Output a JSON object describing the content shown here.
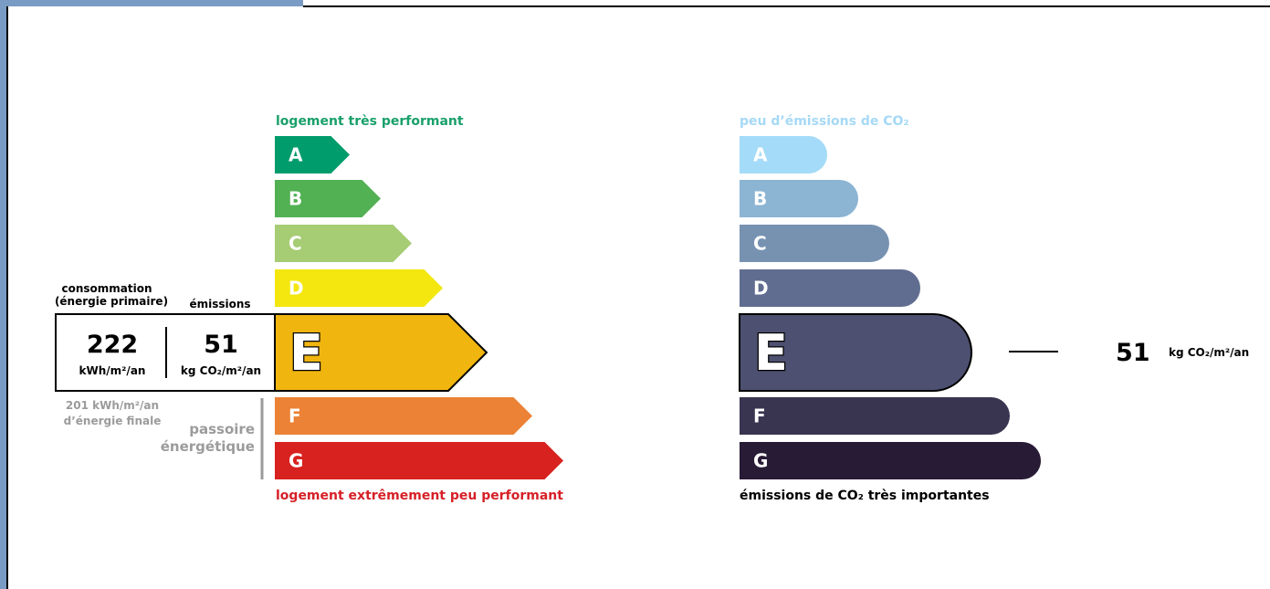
{
  "energy": {
    "top_label": "logement très performant",
    "bottom_label": "logement extrêmement peu performant",
    "top_color": "#19a06a",
    "bottom_color": "#d62027",
    "classes": [
      {
        "letter": "A",
        "color": "#009c6b"
      },
      {
        "letter": "B",
        "color": "#52b153"
      },
      {
        "letter": "C",
        "color": "#a6cc74"
      },
      {
        "letter": "D",
        "color": "#f3e70f"
      },
      {
        "letter": "E",
        "color": "#f0b50f"
      },
      {
        "letter": "F",
        "color": "#eb8235"
      },
      {
        "letter": "G",
        "color": "#d7221f"
      }
    ],
    "current_class": "E",
    "consumption_title_1": "consommation",
    "consumption_title_2": "(énergie primaire)",
    "emissions_title": "émissions",
    "consumption_value": "222",
    "consumption_unit": "kWh/m²/an",
    "emissions_value": "51",
    "emissions_unit": "kg CO₂/m²/an",
    "final_line_1": "201 kWh/m²/an",
    "final_line_2": "d’énergie finale",
    "passoire_1": "passoire",
    "passoire_2": "énergétique",
    "passoire_classes": [
      "F",
      "G"
    ]
  },
  "climate": {
    "top_label": "peu d’émissions de CO₂",
    "bottom_label": "émissions de CO₂ très importantes",
    "top_color": "#a6d9f6",
    "bottom_color": "#000000",
    "classes": [
      {
        "letter": "A",
        "color": "#a4dbf8"
      },
      {
        "letter": "B",
        "color": "#8cb4d3"
      },
      {
        "letter": "C",
        "color": "#7792b1"
      },
      {
        "letter": "D",
        "color": "#606d91"
      },
      {
        "letter": "E",
        "color": "#4d5070"
      },
      {
        "letter": "F",
        "color": "#393551"
      },
      {
        "letter": "G",
        "color": "#281b35"
      }
    ],
    "current_class": "E",
    "value": "51",
    "unit": "kg CO₂/m²/an"
  }
}
